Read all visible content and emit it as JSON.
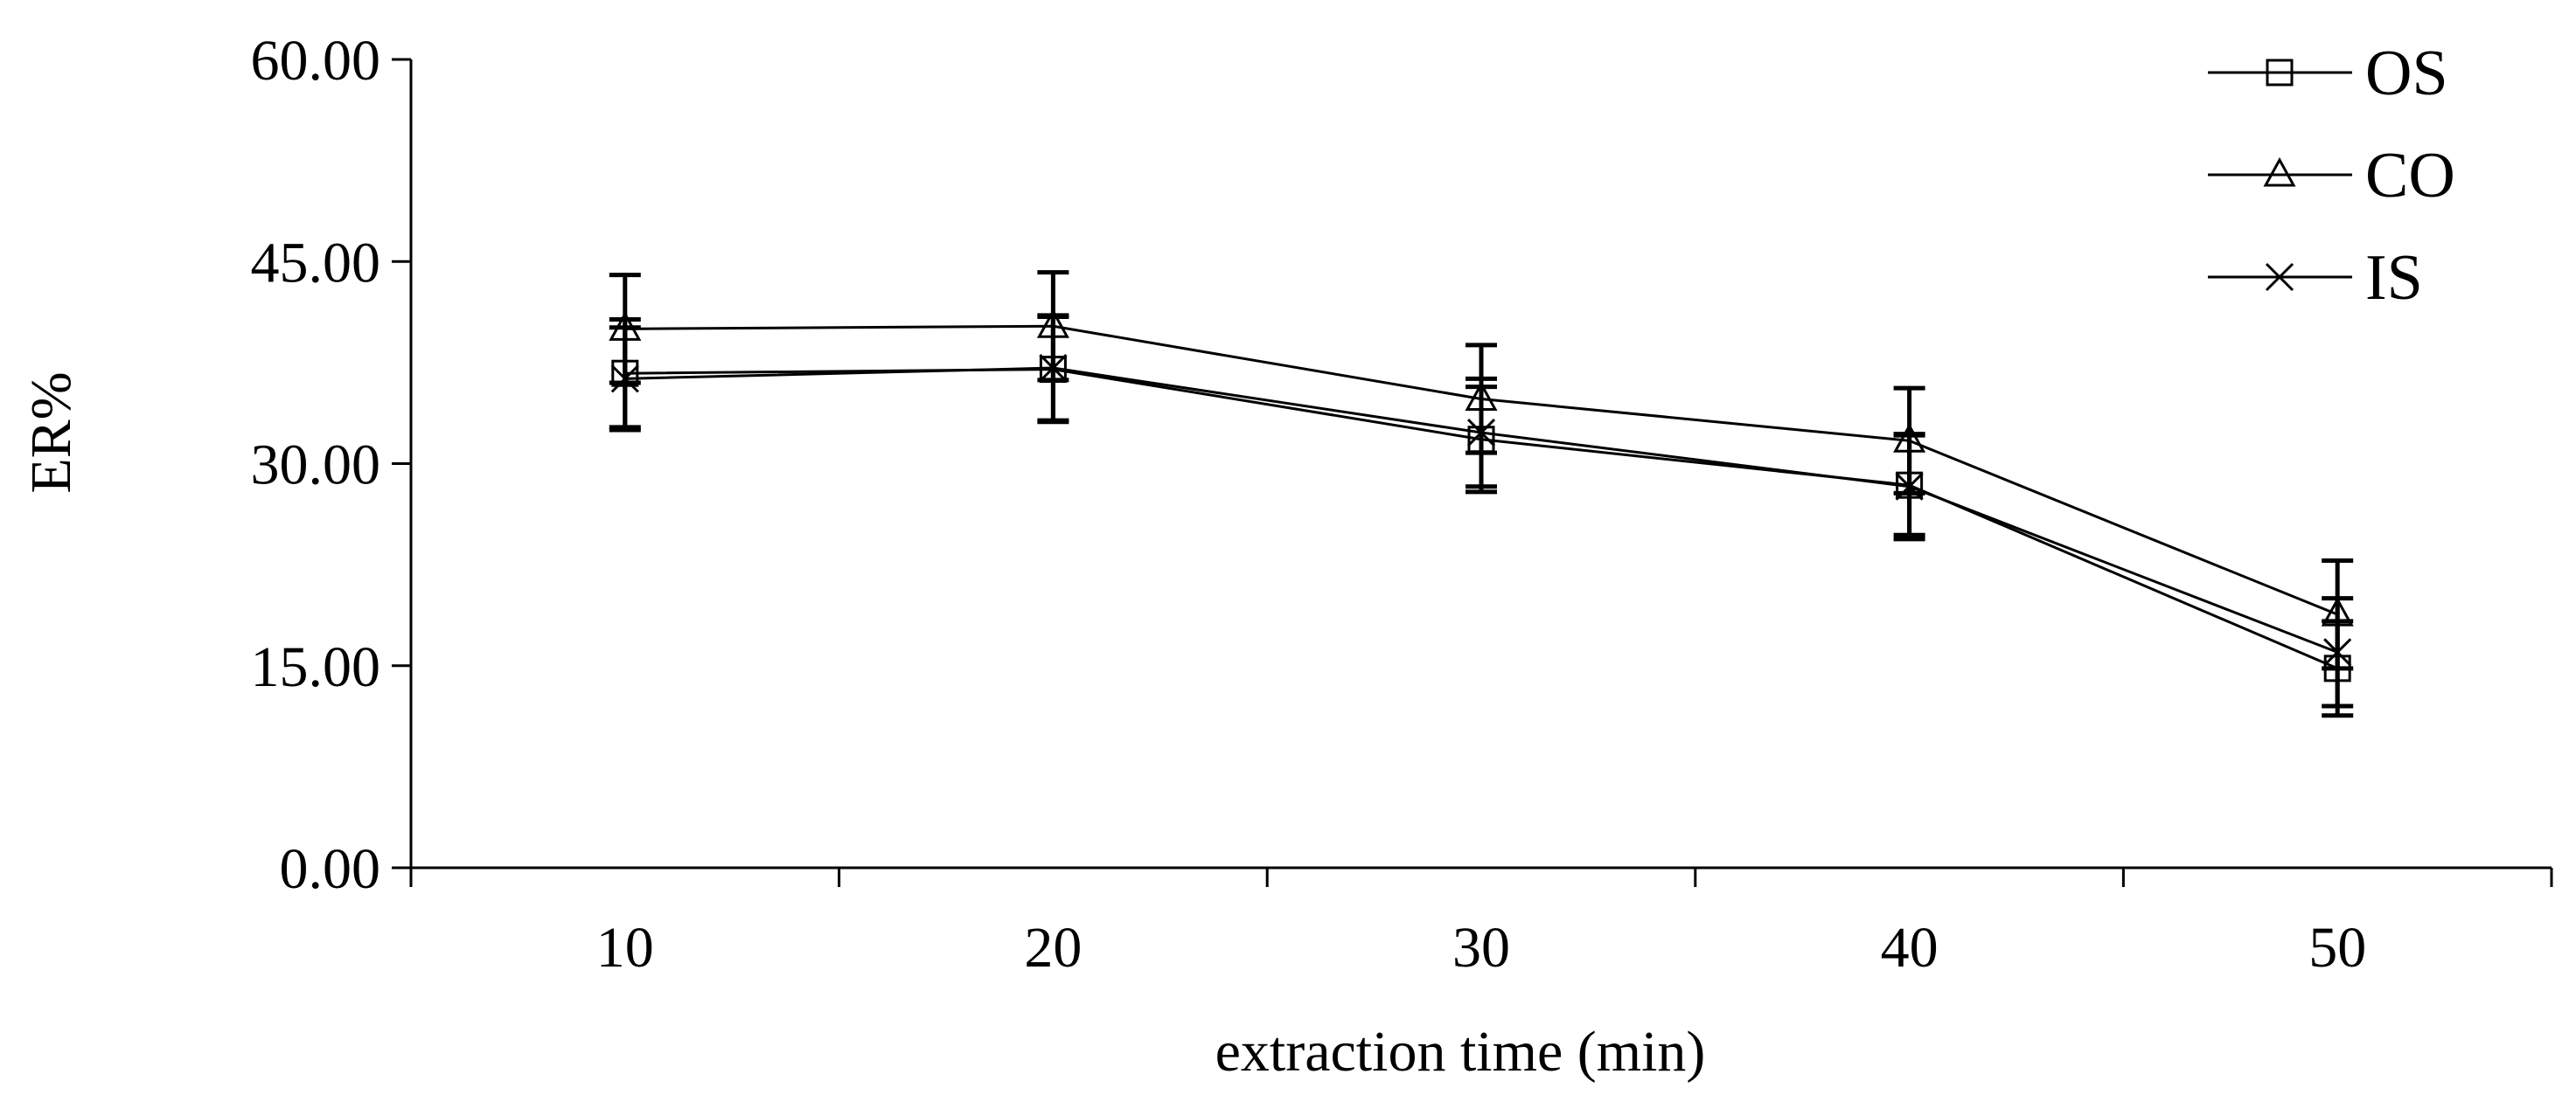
{
  "chart_data": {
    "type": "line",
    "title": "",
    "xlabel": "extraction time (min)",
    "ylabel": "ER%",
    "categories": [
      "10",
      "20",
      "30",
      "40",
      "50"
    ],
    "ylim": [
      0,
      60
    ],
    "yticks": [
      "0.00",
      "15.00",
      "30.00",
      "45.00",
      "60.00"
    ],
    "grid": false,
    "legend_position": "top-right",
    "series": [
      {
        "name": "OS",
        "marker": "square",
        "values": [
          36.7,
          37.0,
          31.8,
          28.4,
          14.8
        ],
        "errors": [
          4.0,
          3.9,
          3.9,
          3.7,
          3.5
        ]
      },
      {
        "name": "CO",
        "marker": "triangle",
        "values": [
          40.0,
          40.2,
          34.8,
          31.7,
          18.8
        ],
        "errors": [
          4.0,
          4.0,
          4.0,
          3.9,
          4.0
        ]
      },
      {
        "name": "IS",
        "marker": "x",
        "values": [
          36.3,
          37.1,
          32.3,
          28.3,
          16.0
        ],
        "errors": [
          3.8,
          3.9,
          4.0,
          3.9,
          4.0
        ]
      }
    ]
  }
}
